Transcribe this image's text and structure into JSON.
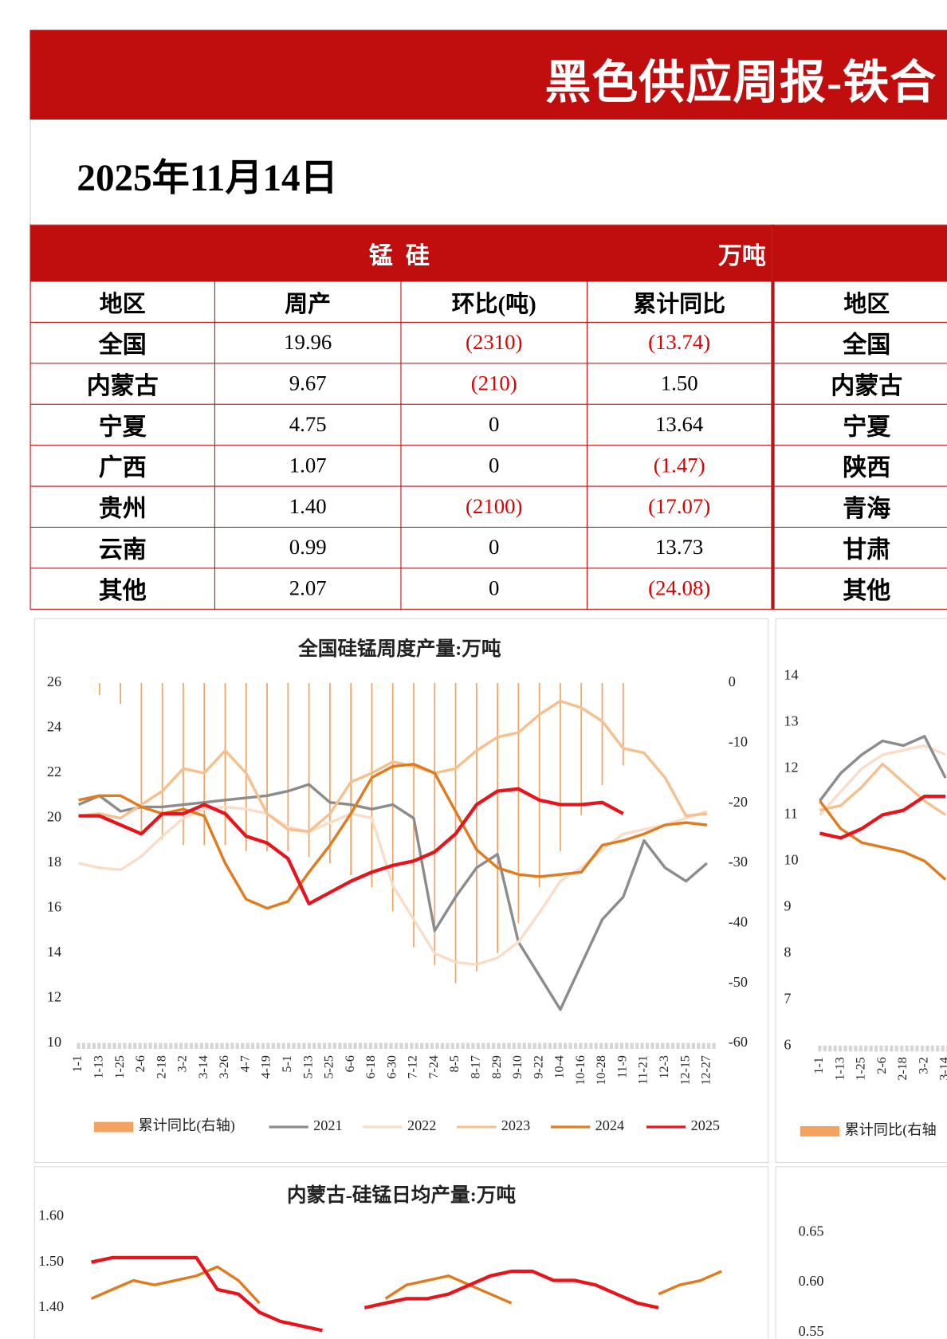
{
  "header": {
    "title": "黑色供应周报-铁合"
  },
  "date": "2025年11月14日",
  "table": {
    "title": "锰 硅",
    "unit": "万吨",
    "columns": [
      "地区",
      "周产",
      "环比(吨)",
      "累计同比"
    ],
    "rows": [
      [
        "全国",
        "19.96",
        "(2310)",
        "(13.74)"
      ],
      [
        "内蒙古",
        "9.67",
        "(210)",
        "1.50"
      ],
      [
        "宁夏",
        "4.75",
        "0",
        "13.64"
      ],
      [
        "广西",
        "1.07",
        "0",
        "(1.47)"
      ],
      [
        "贵州",
        "1.40",
        "(2100)",
        "(17.07)"
      ],
      [
        "云南",
        "0.99",
        "0",
        "13.73"
      ],
      [
        "其他",
        "2.07",
        "0",
        "(24.08)"
      ]
    ]
  },
  "right_table": {
    "columns": [
      "地区"
    ],
    "rows": [
      [
        "全国"
      ],
      [
        "内蒙古"
      ],
      [
        "宁夏"
      ],
      [
        "陕西"
      ],
      [
        "青海"
      ],
      [
        "甘肃"
      ],
      [
        "其他"
      ]
    ]
  },
  "chart_data": [
    {
      "type": "line",
      "title": "全国硅锰周度产量:万吨",
      "categories": [
        "1-1",
        "1-13",
        "1-25",
        "2-6",
        "2-18",
        "3-2",
        "3-14",
        "3-26",
        "4-7",
        "4-19",
        "5-1",
        "5-13",
        "5-25",
        "6-6",
        "6-18",
        "6-30",
        "7-12",
        "7-24",
        "8-5",
        "8-17",
        "8-29",
        "9-10",
        "9-22",
        "10-4",
        "10-16",
        "10-28",
        "11-9",
        "11-21",
        "12-3",
        "12-15",
        "12-27"
      ],
      "series": [
        {
          "name": "累计同比(右轴)",
          "type": "bar",
          "axis": "y2",
          "color": "#f3a35f",
          "values": [
            null,
            -2,
            -3.5,
            -25,
            -26,
            -27,
            -27,
            -27,
            -28,
            -28,
            -28,
            -29,
            -30,
            -32,
            -34,
            -38,
            -44,
            -47,
            -50,
            -48,
            -45,
            -40,
            -34,
            -28,
            -22,
            -17,
            -13.74,
            null,
            null,
            null,
            null
          ]
        },
        {
          "name": "2021",
          "color": "#8c8c8c",
          "values": [
            20.6,
            21.0,
            20.3,
            20.5,
            20.5,
            20.6,
            20.7,
            20.8,
            20.9,
            21.0,
            21.2,
            21.5,
            20.7,
            20.6,
            20.4,
            20.6,
            20.0,
            15.0,
            16.5,
            17.8,
            18.4,
            14.5,
            13.0,
            11.5,
            13.5,
            15.5,
            16.5,
            19.0,
            17.8,
            17.2,
            18.0
          ]
        },
        {
          "name": "2022",
          "color": "#f9ddc9",
          "values": [
            18.0,
            17.8,
            17.7,
            18.3,
            19.2,
            20.0,
            20.4,
            20.5,
            20.4,
            20.2,
            19.6,
            19.4,
            19.8,
            20.2,
            20.0,
            17.0,
            15.5,
            14.0,
            13.6,
            13.5,
            13.8,
            14.5,
            15.8,
            17.2,
            17.8,
            18.6,
            19.3,
            19.5,
            19.7,
            20.0,
            20.3
          ]
        },
        {
          "name": "2023",
          "color": "#f6c08e",
          "values": [
            20.1,
            20.2,
            20.0,
            20.6,
            21.2,
            22.2,
            22.0,
            23.0,
            22.0,
            20.2,
            19.5,
            19.4,
            20.2,
            21.6,
            22.0,
            22.5,
            22.3,
            22.0,
            22.2,
            23.0,
            23.6,
            23.8,
            24.6,
            25.2,
            24.9,
            24.3,
            23.1,
            22.9,
            21.8,
            20.1,
            20.2
          ]
        },
        {
          "name": "2024",
          "color": "#e07b1f",
          "values": [
            20.8,
            21.0,
            21.0,
            20.5,
            20.2,
            20.4,
            20.1,
            18.0,
            16.4,
            16.0,
            16.3,
            17.6,
            18.8,
            20.2,
            21.8,
            22.3,
            22.4,
            22.0,
            20.3,
            18.6,
            17.8,
            17.5,
            17.4,
            17.5,
            17.6,
            18.8,
            19.0,
            19.3,
            19.7,
            19.8,
            19.7
          ]
        },
        {
          "name": "2025",
          "color": "#e8141c",
          "values": [
            20.1,
            20.1,
            19.7,
            19.3,
            20.2,
            20.2,
            20.6,
            20.2,
            19.2,
            18.9,
            18.2,
            16.2,
            16.7,
            17.2,
            17.6,
            17.9,
            18.1,
            18.5,
            19.3,
            20.6,
            21.2,
            21.3,
            20.8,
            20.6,
            20.6,
            20.7,
            20.2,
            null,
            null,
            null,
            null
          ]
        }
      ],
      "ylim": [
        10,
        26
      ],
      "yticks": [
        10,
        12,
        14,
        16,
        18,
        20,
        22,
        24,
        26
      ],
      "y2lim": [
        -60,
        0
      ],
      "y2ticks": [
        -60,
        -50,
        -40,
        -30,
        -20,
        -10,
        0
      ],
      "legend": "bottom"
    },
    {
      "type": "line",
      "categories": [
        "1-1",
        "1-13",
        "1-25",
        "2-6",
        "2-18",
        "3-2",
        "3-14"
      ],
      "series": [
        {
          "name": "累计同比(右轴",
          "type": "bar",
          "axis": "y2",
          "color": "#f3a35f",
          "values": [
            null,
            null,
            null,
            null,
            null,
            null,
            null
          ]
        },
        {
          "color": "#f9ddc9",
          "values": [
            11.0,
            11.5,
            12.0,
            12.3,
            12.4,
            12.5,
            12.3
          ]
        },
        {
          "color": "#8c8c8c",
          "values": [
            11.3,
            11.9,
            12.3,
            12.6,
            12.5,
            12.7,
            11.8
          ]
        },
        {
          "color": "#f6c08e",
          "values": [
            11.1,
            11.2,
            11.6,
            12.1,
            11.7,
            11.3,
            11.0
          ]
        },
        {
          "color": "#e07b1f",
          "values": [
            11.3,
            10.7,
            10.4,
            10.3,
            10.2,
            10.0,
            9.6
          ]
        },
        {
          "color": "#e8141c",
          "values": [
            10.6,
            10.5,
            10.7,
            11.0,
            11.1,
            11.4,
            11.4
          ]
        }
      ],
      "ylim": [
        6,
        14
      ],
      "yticks": [
        6,
        7,
        8,
        9,
        10,
        11,
        12,
        13,
        14
      ],
      "legend": "bottom"
    },
    {
      "type": "line",
      "title": "内蒙古-硅锰日均产量:万吨",
      "series": [
        {
          "color": "#e07b1f",
          "values": [
            1.42,
            1.44,
            1.46,
            1.45,
            1.46,
            1.47,
            1.49,
            1.46,
            1.41,
            null,
            null,
            null,
            null,
            null,
            1.42,
            1.45,
            1.46,
            1.47,
            1.45,
            1.43,
            1.41,
            null,
            null,
            null,
            null,
            null,
            null,
            1.43,
            1.45,
            1.46,
            1.48
          ]
        },
        {
          "color": "#e8141c",
          "values": [
            1.5,
            1.51,
            1.51,
            1.51,
            1.51,
            1.51,
            1.44,
            1.43,
            1.39,
            1.37,
            1.36,
            1.35,
            null,
            1.4,
            1.41,
            1.42,
            1.42,
            1.43,
            1.45,
            1.47,
            1.48,
            1.48,
            1.46,
            1.46,
            1.45,
            1.43,
            1.41,
            1.4,
            null,
            null,
            null
          ]
        }
      ],
      "ylim": [
        1.3,
        1.6
      ],
      "yticks": [
        {
          "value": 1.4,
          "label": "1.40"
        },
        {
          "value": 1.5,
          "label": "1.50"
        },
        {
          "value": 1.6,
          "label": "1.60"
        }
      ]
    },
    {
      "type": "line",
      "series": [],
      "ylim": [
        0.5,
        0.7
      ],
      "yticks": [
        0.55,
        {
          "value": 0.6,
          "label": "0.60"
        },
        0.65
      ]
    }
  ]
}
